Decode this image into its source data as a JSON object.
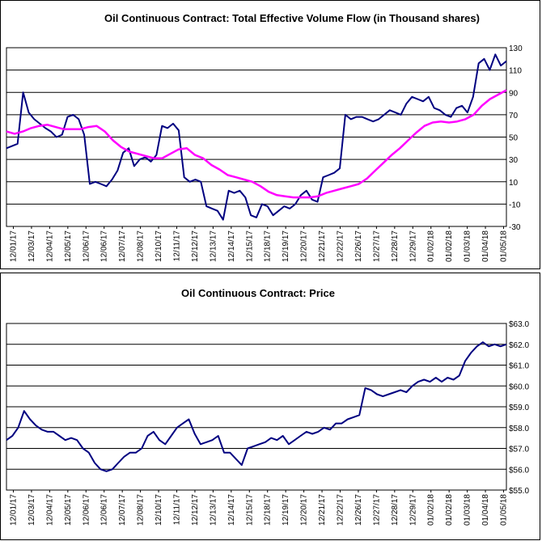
{
  "chart_data": [
    {
      "type": "line",
      "title": "Oil Continuous Contract: Total Effective Volume Flow (in Thousand shares)",
      "xlabel": "",
      "ylabel": "",
      "x_tick_labels": [
        "12/01/17",
        "12/03/17",
        "12/04/17",
        "12/05/17",
        "12/06/17",
        "12/06/17",
        "12/07/17",
        "12/08/17",
        "12/10/17",
        "12/11/17",
        "12/12/17",
        "12/13/17",
        "12/14/17",
        "12/15/17",
        "12/18/17",
        "12/19/17",
        "12/20/17",
        "12/21/17",
        "12/22/17",
        "12/26/17",
        "12/27/17",
        "12/28/17",
        "12/29/17",
        "01/02/18",
        "01/02/18",
        "01/03/18",
        "01/04/18",
        "01/05/18"
      ],
      "y_ticks": [
        "-30",
        "-10",
        "10",
        "30",
        "50",
        "70",
        "90",
        "110",
        "130"
      ],
      "ylim": [
        -30,
        130
      ],
      "grid": "horizontal",
      "series": [
        {
          "color": "#000080",
          "values": [
            40,
            42,
            44,
            90,
            72,
            66,
            62,
            58,
            55,
            50,
            52,
            68,
            70,
            66,
            52,
            8,
            10,
            8,
            6,
            12,
            20,
            36,
            40,
            24,
            30,
            32,
            28,
            34,
            60,
            58,
            62,
            56,
            14,
            10,
            12,
            10,
            -12,
            -14,
            -16,
            -24,
            2,
            0,
            2,
            -4,
            -20,
            -22,
            -10,
            -12,
            -20,
            -16,
            -12,
            -14,
            -10,
            -2,
            2,
            -6,
            -8,
            14,
            16,
            18,
            22,
            70,
            66,
            68,
            68,
            66,
            64,
            66,
            70,
            74,
            72,
            70,
            80,
            86,
            84,
            82,
            86,
            76,
            74,
            70,
            68,
            76,
            78,
            72,
            86,
            116,
            120,
            110,
            124,
            114,
            118
          ]
        },
        {
          "color": "#FF00FF",
          "values": [
            55,
            53,
            55,
            58,
            60,
            61,
            59,
            57,
            57,
            57,
            59,
            60,
            55,
            47,
            41,
            37,
            35,
            33,
            31,
            31,
            35,
            39,
            40,
            34,
            31,
            25,
            21,
            16,
            14,
            12,
            10,
            6,
            1,
            -2,
            -3,
            -4,
            -4,
            -4,
            -3,
            0,
            2,
            4,
            6,
            8,
            13,
            20,
            27,
            34,
            40,
            47,
            54,
            60,
            63,
            64,
            63,
            64,
            66,
            70,
            78,
            84,
            88,
            92
          ]
        }
      ]
    },
    {
      "type": "line",
      "title": "Oil Continuous Contract: Price",
      "xlabel": "",
      "ylabel": "",
      "x_tick_labels": [
        "12/01/17",
        "12/03/17",
        "12/04/17",
        "12/05/17",
        "12/06/17",
        "12/06/17",
        "12/07/17",
        "12/08/17",
        "12/10/17",
        "12/11/17",
        "12/12/17",
        "12/13/17",
        "12/14/17",
        "12/15/17",
        "12/18/17",
        "12/19/17",
        "12/20/17",
        "12/21/17",
        "12/22/17",
        "12/26/17",
        "12/27/17",
        "12/28/17",
        "12/29/17",
        "01/02/18",
        "01/02/18",
        "01/03/18",
        "01/04/18",
        "01/05/18"
      ],
      "y_ticks": [
        "$55.0",
        "$56.0",
        "$57.0",
        "$58.0",
        "$59.0",
        "$60.0",
        "$61.0",
        "$62.0",
        "$63.0"
      ],
      "ylim": [
        55.0,
        63.0
      ],
      "grid": "horizontal",
      "series": [
        {
          "color": "#000080",
          "values": [
            57.4,
            57.6,
            58.0,
            58.8,
            58.4,
            58.1,
            57.9,
            57.8,
            57.8,
            57.6,
            57.4,
            57.5,
            57.4,
            57.0,
            56.8,
            56.3,
            56.0,
            55.9,
            56.0,
            56.3,
            56.6,
            56.8,
            56.8,
            57.0,
            57.6,
            57.8,
            57.4,
            57.2,
            57.6,
            58.0,
            58.2,
            58.4,
            57.7,
            57.2,
            57.3,
            57.4,
            57.6,
            56.8,
            56.8,
            56.5,
            56.2,
            57.0,
            57.1,
            57.2,
            57.3,
            57.5,
            57.4,
            57.6,
            57.2,
            57.4,
            57.6,
            57.8,
            57.7,
            57.8,
            58.0,
            57.9,
            58.2,
            58.2,
            58.4,
            58.5,
            58.6,
            59.9,
            59.8,
            59.6,
            59.5,
            59.6,
            59.7,
            59.8,
            59.7,
            60.0,
            60.2,
            60.3,
            60.2,
            60.4,
            60.2,
            60.4,
            60.3,
            60.5,
            61.2,
            61.6,
            61.9,
            62.1,
            61.9,
            62.0,
            61.9,
            62.0
          ]
        }
      ]
    }
  ]
}
